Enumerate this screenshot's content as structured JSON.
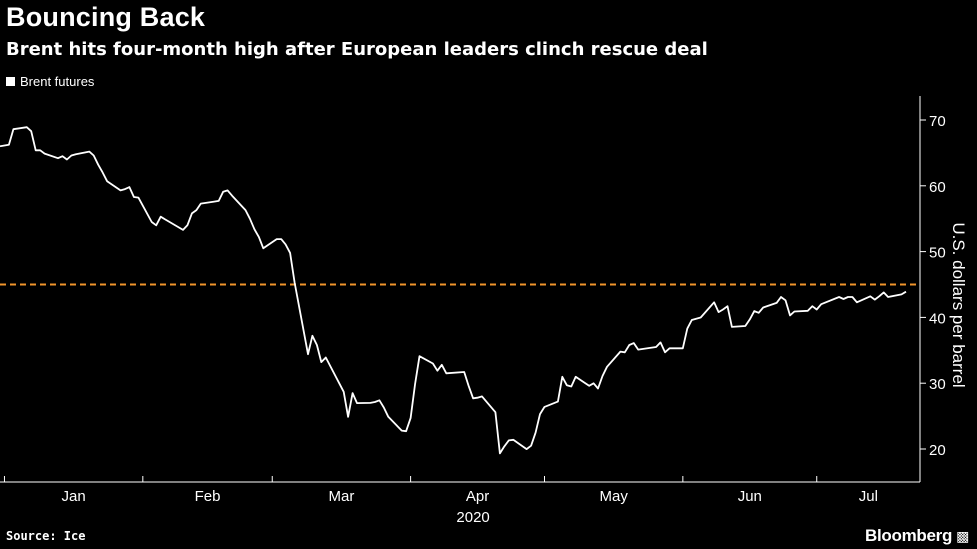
{
  "header": {
    "title": "Bouncing Back",
    "subtitle": "Brent hits four-month high after European leaders clinch rescue deal"
  },
  "footer": {
    "source": "Source: Ice",
    "brand": "Bloomberg",
    "brand_icon": "bloomberg-terminal-icon"
  },
  "colors": {
    "background": "#000000",
    "line": "#ffffff",
    "reference": "#f0952b",
    "axis": "#ffffff"
  },
  "chart_data": {
    "type": "line",
    "title": "Bouncing Back",
    "subtitle": "Brent hits four-month high after European leaders clinch rescue deal",
    "ylabel": "U.S. dollars per barrel",
    "y_axis_side": "right",
    "ylim": [
      15,
      74
    ],
    "yticks": [
      20,
      30,
      40,
      50,
      60,
      70
    ],
    "year_label": "2020",
    "month_ticks": [
      "Jan",
      "Feb",
      "Mar",
      "Apr",
      "May",
      "Jun",
      "Jul"
    ],
    "grid": false,
    "legend": "top-left",
    "reference_line": {
      "y": 45,
      "style": "dashed"
    },
    "series": [
      {
        "name": "Brent futures",
        "x": [
          "2019-12-31",
          "2020-01-02",
          "2020-01-03",
          "2020-01-06",
          "2020-01-07",
          "2020-01-08",
          "2020-01-09",
          "2020-01-10",
          "2020-01-13",
          "2020-01-14",
          "2020-01-15",
          "2020-01-16",
          "2020-01-17",
          "2020-01-20",
          "2020-01-21",
          "2020-01-22",
          "2020-01-23",
          "2020-01-24",
          "2020-01-27",
          "2020-01-28",
          "2020-01-29",
          "2020-01-30",
          "2020-01-31",
          "2020-02-03",
          "2020-02-04",
          "2020-02-05",
          "2020-02-06",
          "2020-02-07",
          "2020-02-10",
          "2020-02-11",
          "2020-02-12",
          "2020-02-13",
          "2020-02-14",
          "2020-02-17",
          "2020-02-18",
          "2020-02-19",
          "2020-02-20",
          "2020-02-21",
          "2020-02-24",
          "2020-02-25",
          "2020-02-26",
          "2020-02-27",
          "2020-02-28",
          "2020-03-02",
          "2020-03-03",
          "2020-03-04",
          "2020-03-05",
          "2020-03-06",
          "2020-03-09",
          "2020-03-10",
          "2020-03-11",
          "2020-03-12",
          "2020-03-13",
          "2020-03-16",
          "2020-03-17",
          "2020-03-18",
          "2020-03-19",
          "2020-03-20",
          "2020-03-23",
          "2020-03-24",
          "2020-03-25",
          "2020-03-26",
          "2020-03-27",
          "2020-03-30",
          "2020-03-31",
          "2020-04-01",
          "2020-04-02",
          "2020-04-03",
          "2020-04-06",
          "2020-04-07",
          "2020-04-08",
          "2020-04-09",
          "2020-04-13",
          "2020-04-14",
          "2020-04-15",
          "2020-04-16",
          "2020-04-17",
          "2020-04-20",
          "2020-04-21",
          "2020-04-22",
          "2020-04-23",
          "2020-04-24",
          "2020-04-27",
          "2020-04-28",
          "2020-04-29",
          "2020-04-30",
          "2020-05-01",
          "2020-05-04",
          "2020-05-05",
          "2020-05-06",
          "2020-05-07",
          "2020-05-08",
          "2020-05-11",
          "2020-05-12",
          "2020-05-13",
          "2020-05-14",
          "2020-05-15",
          "2020-05-18",
          "2020-05-19",
          "2020-05-20",
          "2020-05-21",
          "2020-05-22",
          "2020-05-26",
          "2020-05-27",
          "2020-05-28",
          "2020-05-29",
          "2020-06-01",
          "2020-06-02",
          "2020-06-03",
          "2020-06-04",
          "2020-06-05",
          "2020-06-08",
          "2020-06-09",
          "2020-06-10",
          "2020-06-11",
          "2020-06-12",
          "2020-06-15",
          "2020-06-16",
          "2020-06-17",
          "2020-06-18",
          "2020-06-19",
          "2020-06-22",
          "2020-06-23",
          "2020-06-24",
          "2020-06-25",
          "2020-06-26",
          "2020-06-29",
          "2020-06-30",
          "2020-07-01",
          "2020-07-02",
          "2020-07-06",
          "2020-07-07",
          "2020-07-08",
          "2020-07-09",
          "2020-07-10",
          "2020-07-13",
          "2020-07-14",
          "2020-07-15",
          "2020-07-16",
          "2020-07-17",
          "2020-07-20",
          "2020-07-21"
        ],
        "values": [
          66.0,
          66.25,
          68.6,
          68.9,
          68.3,
          65.4,
          65.4,
          64.9,
          64.2,
          64.5,
          64.0,
          64.6,
          64.8,
          65.2,
          64.6,
          63.2,
          62.0,
          60.7,
          59.3,
          59.5,
          59.8,
          58.3,
          58.2,
          54.5,
          54.0,
          55.3,
          54.9,
          54.5,
          53.3,
          54.0,
          55.8,
          56.3,
          57.3,
          57.6,
          57.7,
          59.1,
          59.3,
          58.5,
          56.3,
          55.0,
          53.4,
          52.2,
          50.5,
          51.9,
          51.9,
          51.1,
          49.8,
          45.3,
          34.4,
          37.2,
          35.8,
          33.2,
          33.9,
          30.0,
          28.7,
          24.9,
          28.5,
          26.98,
          27.0,
          27.15,
          27.4,
          26.3,
          24.9,
          22.8,
          22.7,
          24.7,
          29.9,
          34.1,
          33.0,
          31.9,
          32.8,
          31.5,
          31.7,
          29.6,
          27.7,
          27.8,
          28.0,
          25.6,
          19.33,
          20.4,
          21.3,
          21.4,
          19.99,
          20.5,
          22.5,
          25.3,
          26.4,
          27.2,
          30.97,
          29.7,
          29.5,
          30.97,
          29.6,
          29.98,
          29.2,
          31.1,
          32.5,
          34.8,
          34.7,
          35.8,
          36.1,
          35.1,
          35.5,
          36.2,
          34.7,
          35.3,
          35.3,
          38.3,
          39.6,
          39.8,
          39.99,
          42.3,
          40.8,
          41.2,
          41.7,
          38.55,
          38.7,
          39.7,
          40.96,
          40.7,
          41.5,
          42.2,
          43.1,
          42.6,
          40.3,
          40.9,
          41.0,
          41.7,
          41.2,
          42.0,
          43.1,
          42.8,
          43.1,
          43.1,
          42.3,
          43.2,
          42.7,
          43.2,
          43.8,
          43.1,
          43.5,
          43.9
        ]
      }
    ]
  }
}
